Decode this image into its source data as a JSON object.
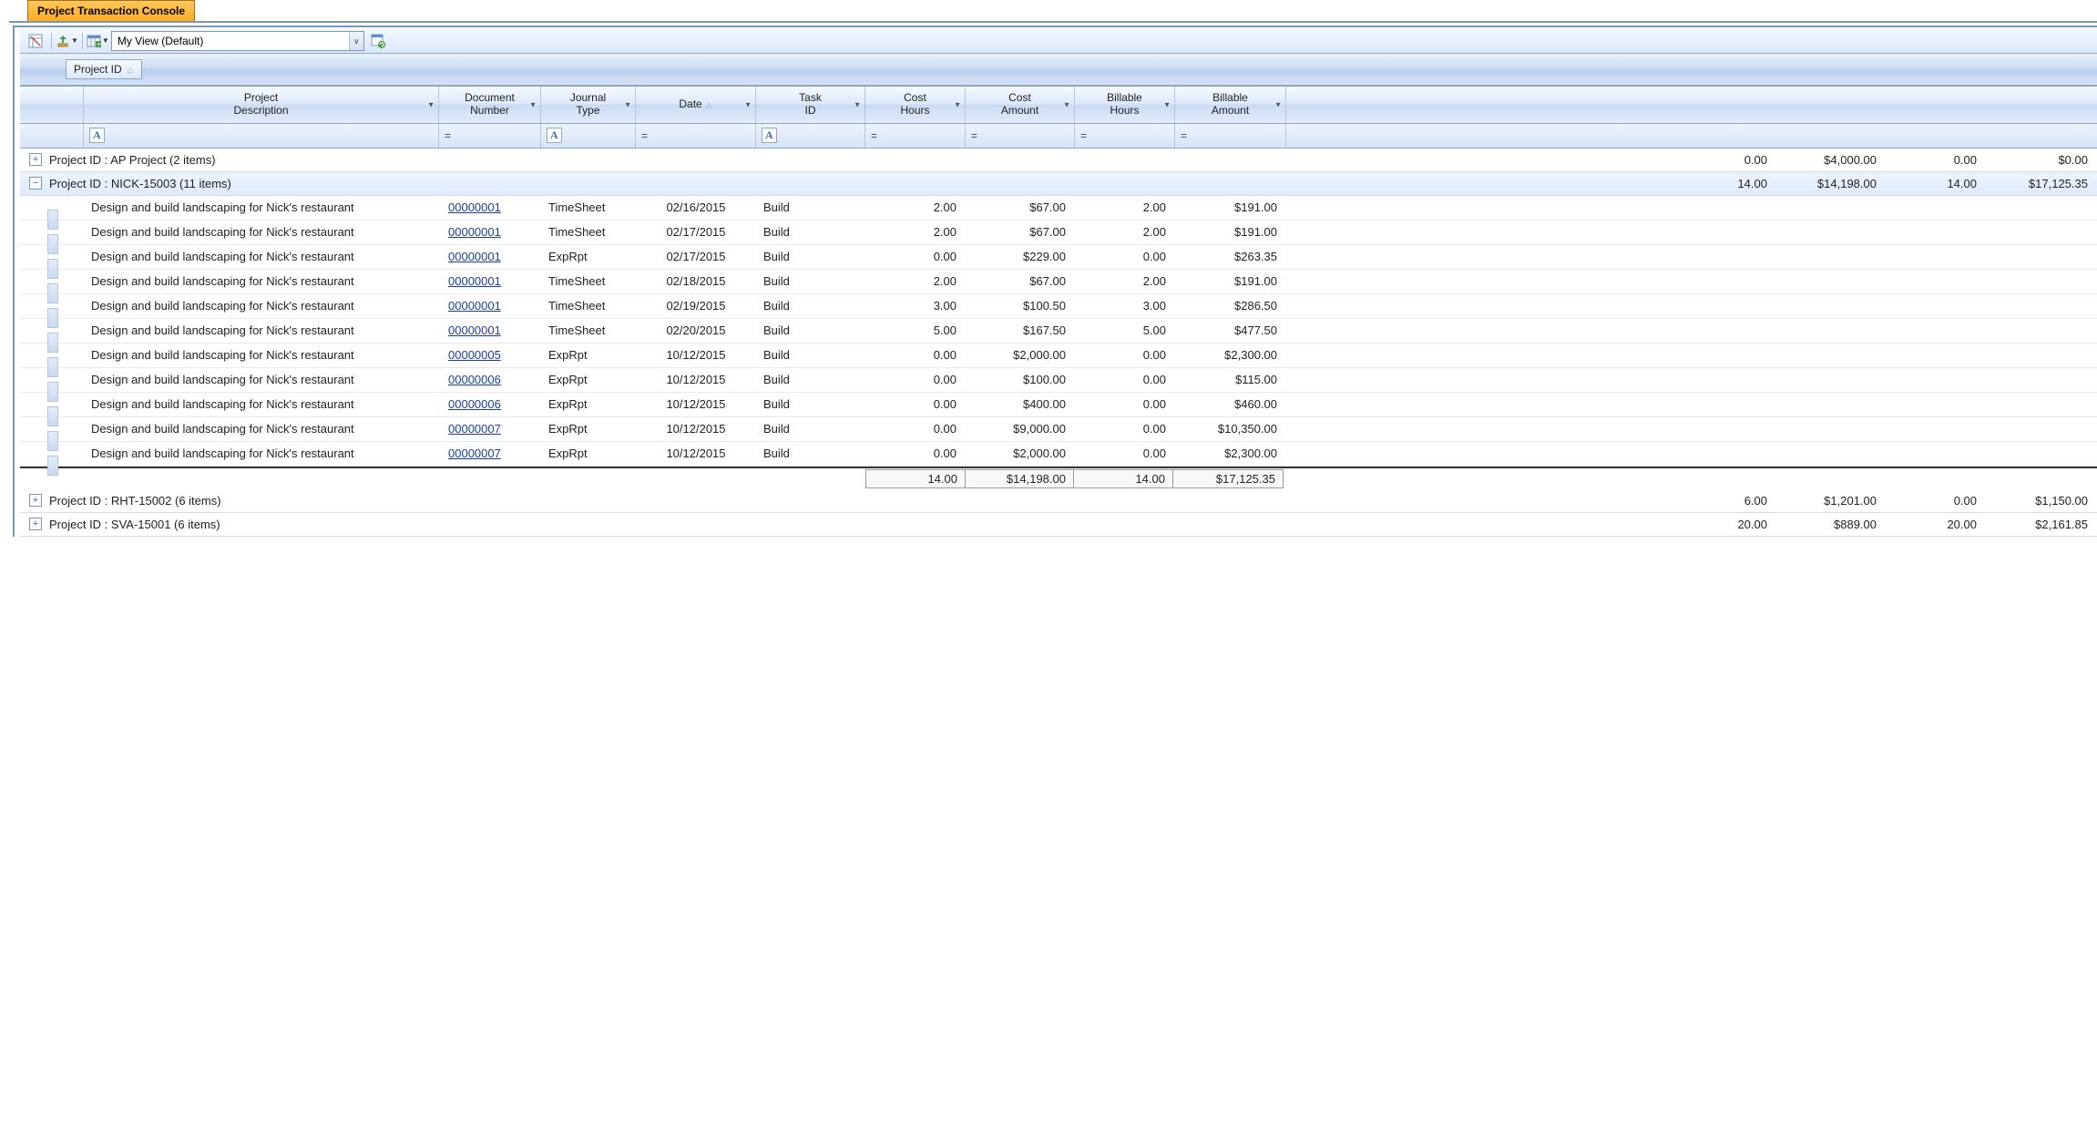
{
  "tab_title": "Project Transaction Console",
  "toolbar": {
    "view_value": "My View (Default)"
  },
  "group_by": {
    "label": "Project ID"
  },
  "columns": {
    "desc": "Project\nDescription",
    "doc": "Document\nNumber",
    "jrnl": "Journal\nType",
    "date": "Date",
    "task": "Task\nID",
    "ch": "Cost\nHours",
    "ca": "Cost\nAmount",
    "bh": "Billable\nHours",
    "ba": "Billable\nAmount"
  },
  "filters": {
    "a_icon": "A",
    "eq": "="
  },
  "groups": [
    {
      "expanded": false,
      "label": "Project ID : AP Project (2 items)",
      "ch": "0.00",
      "ca": "$4,000.00",
      "bh": "0.00",
      "ba": "$0.00",
      "rows": []
    },
    {
      "expanded": true,
      "label": "Project ID : NICK-15003 (11 items)",
      "ch": "14.00",
      "ca": "$14,198.00",
      "bh": "14.00",
      "ba": "$17,125.35",
      "rows": [
        {
          "desc": "Design and build landscaping for Nick's restaurant",
          "doc": "00000001",
          "jrnl": "TimeSheet",
          "date": "02/16/2015",
          "task": "Build",
          "ch": "2.00",
          "ca": "$67.00",
          "bh": "2.00",
          "ba": "$191.00"
        },
        {
          "desc": "Design and build landscaping for Nick's restaurant",
          "doc": "00000001",
          "jrnl": "TimeSheet",
          "date": "02/17/2015",
          "task": "Build",
          "ch": "2.00",
          "ca": "$67.00",
          "bh": "2.00",
          "ba": "$191.00"
        },
        {
          "desc": "Design and build landscaping for Nick's restaurant",
          "doc": "00000001",
          "jrnl": "ExpRpt",
          "date": "02/17/2015",
          "task": "Build",
          "ch": "0.00",
          "ca": "$229.00",
          "bh": "0.00",
          "ba": "$263.35"
        },
        {
          "desc": "Design and build landscaping for Nick's restaurant",
          "doc": "00000001",
          "jrnl": "TimeSheet",
          "date": "02/18/2015",
          "task": "Build",
          "ch": "2.00",
          "ca": "$67.00",
          "bh": "2.00",
          "ba": "$191.00"
        },
        {
          "desc": "Design and build landscaping for Nick's restaurant",
          "doc": "00000001",
          "jrnl": "TimeSheet",
          "date": "02/19/2015",
          "task": "Build",
          "ch": "3.00",
          "ca": "$100.50",
          "bh": "3.00",
          "ba": "$286.50"
        },
        {
          "desc": "Design and build landscaping for Nick's restaurant",
          "doc": "00000001",
          "jrnl": "TimeSheet",
          "date": "02/20/2015",
          "task": "Build",
          "ch": "5.00",
          "ca": "$167.50",
          "bh": "5.00",
          "ba": "$477.50"
        },
        {
          "desc": "Design and build landscaping for Nick's restaurant",
          "doc": "00000005",
          "jrnl": "ExpRpt",
          "date": "10/12/2015",
          "task": "Build",
          "ch": "0.00",
          "ca": "$2,000.00",
          "bh": "0.00",
          "ba": "$2,300.00"
        },
        {
          "desc": "Design and build landscaping for Nick's restaurant",
          "doc": "00000006",
          "jrnl": "ExpRpt",
          "date": "10/12/2015",
          "task": "Build",
          "ch": "0.00",
          "ca": "$100.00",
          "bh": "0.00",
          "ba": "$115.00"
        },
        {
          "desc": "Design and build landscaping for Nick's restaurant",
          "doc": "00000006",
          "jrnl": "ExpRpt",
          "date": "10/12/2015",
          "task": "Build",
          "ch": "0.00",
          "ca": "$400.00",
          "bh": "0.00",
          "ba": "$460.00"
        },
        {
          "desc": "Design and build landscaping for Nick's restaurant",
          "doc": "00000007",
          "jrnl": "ExpRpt",
          "date": "10/12/2015",
          "task": "Build",
          "ch": "0.00",
          "ca": "$9,000.00",
          "bh": "0.00",
          "ba": "$10,350.00"
        },
        {
          "desc": "Design and build landscaping for Nick's restaurant",
          "doc": "00000007",
          "jrnl": "ExpRpt",
          "date": "10/12/2015",
          "task": "Build",
          "ch": "0.00",
          "ca": "$2,000.00",
          "bh": "0.00",
          "ba": "$2,300.00"
        }
      ],
      "subtotal": {
        "ch": "14.00",
        "ca": "$14,198.00",
        "bh": "14.00",
        "ba": "$17,125.35"
      }
    },
    {
      "expanded": false,
      "label": "Project ID : RHT-15002 (6 items)",
      "ch": "6.00",
      "ca": "$1,201.00",
      "bh": "0.00",
      "ba": "$1,150.00",
      "rows": []
    },
    {
      "expanded": false,
      "label": "Project ID : SVA-15001 (6 items)",
      "ch": "20.00",
      "ca": "$889.00",
      "bh": "20.00",
      "ba": "$2,161.85",
      "rows": []
    }
  ],
  "colors": {
    "tab_bg_top": "#ffc85e",
    "tab_bg_bot": "#ffab1f",
    "hdr_grad_top": "#f7faff",
    "hdr_grad_bot": "#dce8f9",
    "border": "#8ba6c9",
    "link": "#1a3e9e"
  }
}
